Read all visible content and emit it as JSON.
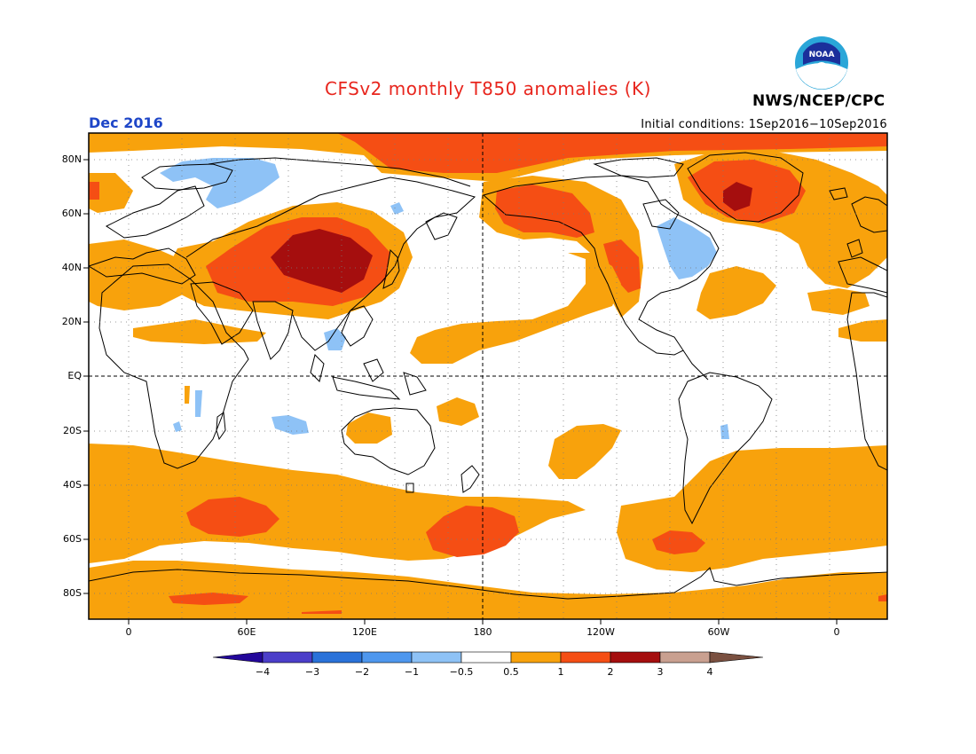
{
  "title": "CFSv2 monthly T850 anomalies (K)",
  "org": "NWS/NCEP/CPC",
  "logo_text": "NOAA",
  "period": "Dec 2016",
  "initial_conditions": "Initial conditions: 1Sep2016−10Sep2016",
  "lat_labels": [
    "80N",
    "60N",
    "40N",
    "20N",
    "EQ",
    "20S",
    "40S",
    "60S",
    "80S"
  ],
  "lon_labels": [
    "0",
    "60E",
    "120E",
    "180",
    "120W",
    "60W",
    "0"
  ],
  "colorbar": {
    "labels": [
      "−4",
      "−3",
      "−2",
      "−1",
      "−0.5",
      "0.5",
      "1",
      "2",
      "3",
      "4"
    ],
    "colors": [
      "#23079a",
      "#4b3ec9",
      "#2a72d9",
      "#4e97ee",
      "#8ec2f6",
      "#ffffff",
      "#f8a20c",
      "#f54e14",
      "#a50e0e",
      "#c9a090",
      "#7a5040"
    ]
  },
  "colors": {
    "warm1": "#f8a20c",
    "warm2": "#f54e14",
    "warm3": "#a50e0e",
    "cool1": "#8ec2f6",
    "title": "#e8261e",
    "period": "#1e46c8"
  }
}
